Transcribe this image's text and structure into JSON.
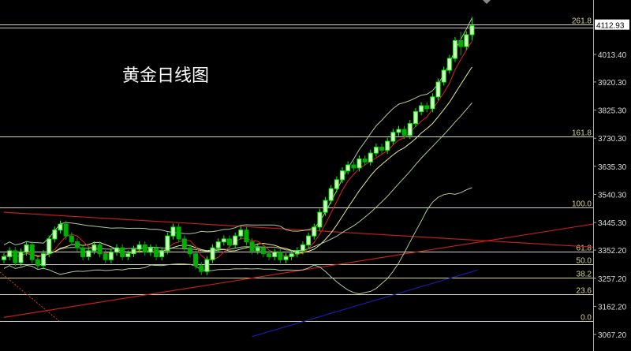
{
  "title": "黄金日线图",
  "chart_data": {
    "type": "candlestick",
    "title": "黄金日线图",
    "y_ticks": [
      "4013.40",
      "3920.30",
      "3825.30",
      "3730.30",
      "3635.30",
      "3540.30",
      "3445.30",
      "3352.20",
      "3257.20",
      "3162.20",
      "3067.20"
    ],
    "y_tick_values": [
      4013.4,
      3920.3,
      3825.3,
      3730.3,
      3635.3,
      3540.3,
      3445.3,
      3352.2,
      3257.2,
      3162.2,
      3067.2
    ],
    "current_price": "4112.93",
    "current_price_value": 4112.93,
    "fib_levels": [
      {
        "label": "261.8",
        "price": 4115
      },
      {
        "label": "161.8",
        "price": 3737
      },
      {
        "label": "100.0",
        "price": 3497
      },
      {
        "label": "61.8",
        "price": 3348
      },
      {
        "label": "50.0",
        "price": 3305
      },
      {
        "label": "38.2",
        "price": 3260
      },
      {
        "label": "23.6",
        "price": 3204
      },
      {
        "label": "0.0",
        "price": 3113
      }
    ],
    "trendlines": [
      {
        "color": "#c0201e",
        "from_index": 0,
        "from_price": 3480,
        "to_index": 111,
        "to_price": 3355
      },
      {
        "color": "#c0201e",
        "from_index": 0,
        "from_price": 3125,
        "to_index": 111,
        "to_price": 3460
      },
      {
        "color": "#1a1aa8",
        "from_index": 44,
        "from_price": 3060,
        "to_index": 84,
        "to_price": 3285
      }
    ],
    "colors": {
      "up": "#00ff00",
      "down": "#00b000",
      "fib": "#d8d890",
      "ma_short": "#e02020",
      "ma_long": "#e8e890",
      "bands": "#b0c8a0"
    },
    "ohlc": [
      [
        3320,
        3342,
        3308,
        3330
      ],
      [
        3330,
        3362,
        3318,
        3350
      ],
      [
        3350,
        3362,
        3298,
        3310
      ],
      [
        3310,
        3357,
        3298,
        3345
      ],
      [
        3345,
        3382,
        3333,
        3370
      ],
      [
        3370,
        3382,
        3308,
        3320
      ],
      [
        3320,
        3332,
        3288,
        3300
      ],
      [
        3300,
        3352,
        3288,
        3340
      ],
      [
        3340,
        3402,
        3328,
        3390
      ],
      [
        3390,
        3432,
        3378,
        3420
      ],
      [
        3420,
        3452,
        3408,
        3440
      ],
      [
        3440,
        3452,
        3388,
        3400
      ],
      [
        3400,
        3412,
        3368,
        3380
      ],
      [
        3380,
        3392,
        3348,
        3360
      ],
      [
        3360,
        3372,
        3318,
        3330
      ],
      [
        3330,
        3362,
        3318,
        3350
      ],
      [
        3350,
        3382,
        3338,
        3370
      ],
      [
        3370,
        3382,
        3328,
        3340
      ],
      [
        3340,
        3352,
        3308,
        3320
      ],
      [
        3320,
        3357,
        3308,
        3345
      ],
      [
        3345,
        3372,
        3333,
        3360
      ],
      [
        3360,
        3372,
        3318,
        3330
      ],
      [
        3330,
        3352,
        3318,
        3340
      ],
      [
        3340,
        3367,
        3328,
        3355
      ],
      [
        3355,
        3382,
        3343,
        3370
      ],
      [
        3370,
        3382,
        3333,
        3345
      ],
      [
        3345,
        3372,
        3333,
        3360
      ],
      [
        3360,
        3372,
        3318,
        3330
      ],
      [
        3330,
        3362,
        3318,
        3350
      ],
      [
        3350,
        3412,
        3338,
        3400
      ],
      [
        3400,
        3442,
        3388,
        3430
      ],
      [
        3430,
        3442,
        3378,
        3390
      ],
      [
        3390,
        3402,
        3348,
        3360
      ],
      [
        3360,
        3372,
        3328,
        3340
      ],
      [
        3340,
        3352,
        3288,
        3300
      ],
      [
        3300,
        3312,
        3268,
        3280
      ],
      [
        3280,
        3332,
        3268,
        3320
      ],
      [
        3320,
        3372,
        3308,
        3360
      ],
      [
        3360,
        3392,
        3348,
        3380
      ],
      [
        3380,
        3402,
        3368,
        3390
      ],
      [
        3390,
        3402,
        3358,
        3370
      ],
      [
        3370,
        3412,
        3358,
        3400
      ],
      [
        3400,
        3432,
        3388,
        3420
      ],
      [
        3420,
        3432,
        3368,
        3380
      ],
      [
        3380,
        3392,
        3338,
        3350
      ],
      [
        3350,
        3372,
        3338,
        3360
      ],
      [
        3360,
        3372,
        3328,
        3340
      ],
      [
        3340,
        3352,
        3318,
        3330
      ],
      [
        3330,
        3357,
        3318,
        3345
      ],
      [
        3345,
        3357,
        3308,
        3320
      ],
      [
        3320,
        3342,
        3308,
        3330
      ],
      [
        3330,
        3352,
        3318,
        3340
      ],
      [
        3340,
        3362,
        3328,
        3350
      ],
      [
        3350,
        3382,
        3338,
        3370
      ],
      [
        3370,
        3412,
        3358,
        3400
      ],
      [
        3400,
        3442,
        3388,
        3430
      ],
      [
        3430,
        3492,
        3418,
        3480
      ],
      [
        3480,
        3532,
        3468,
        3520
      ],
      [
        3520,
        3572,
        3508,
        3560
      ],
      [
        3560,
        3602,
        3548,
        3590
      ],
      [
        3590,
        3632,
        3578,
        3620
      ],
      [
        3620,
        3652,
        3608,
        3640
      ],
      [
        3640,
        3652,
        3618,
        3630
      ],
      [
        3630,
        3672,
        3618,
        3660
      ],
      [
        3660,
        3672,
        3638,
        3650
      ],
      [
        3650,
        3692,
        3638,
        3680
      ],
      [
        3680,
        3712,
        3668,
        3700
      ],
      [
        3700,
        3712,
        3678,
        3690
      ],
      [
        3690,
        3732,
        3678,
        3720
      ],
      [
        3720,
        3762,
        3708,
        3750
      ],
      [
        3750,
        3772,
        3738,
        3760
      ],
      [
        3760,
        3772,
        3728,
        3740
      ],
      [
        3740,
        3792,
        3728,
        3780
      ],
      [
        3780,
        3832,
        3768,
        3820
      ],
      [
        3820,
        3852,
        3808,
        3840
      ],
      [
        3840,
        3852,
        3818,
        3830
      ],
      [
        3830,
        3882,
        3818,
        3870
      ],
      [
        3870,
        3932,
        3858,
        3920
      ],
      [
        3920,
        3972,
        3908,
        3960
      ],
      [
        3960,
        4012,
        3948,
        4000
      ],
      [
        4000,
        4072,
        3988,
        4060
      ],
      [
        4060,
        4090,
        4010,
        4040
      ],
      [
        4040,
        4092,
        4028,
        4080
      ],
      [
        4080,
        4140,
        4060,
        4110
      ]
    ]
  }
}
